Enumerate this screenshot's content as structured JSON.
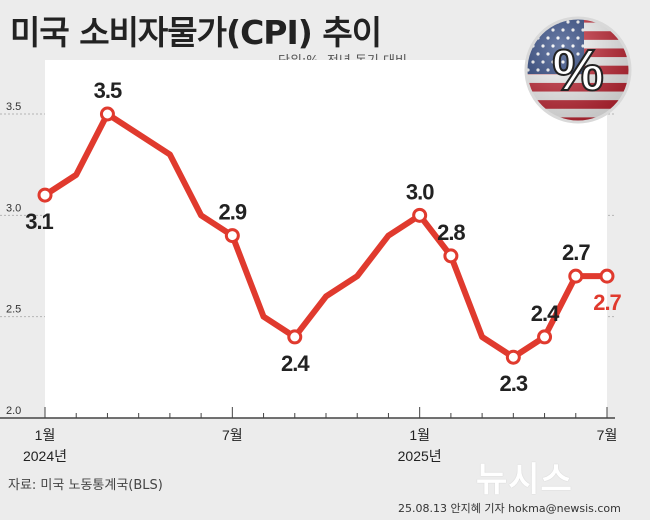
{
  "header": {
    "title": "미국 소비자물가(CPI) 추이",
    "unit_note": "단위:%, 전년 동기 대비"
  },
  "badge": {
    "symbol": "%",
    "icon": "us-flag-icon"
  },
  "footer": {
    "source": "자료: 미국 노동통계국(BLS)",
    "credit": "25.08.13 안지혜 기자 hokma@newsis.com",
    "watermark": "뉴시스"
  },
  "colors": {
    "line": "#e03a2e",
    "last_label": "#e03a2e",
    "label": "#222222",
    "grid": "#b5b5b5",
    "background": "#ececec",
    "plot_area": "#ffffff"
  },
  "chart_data": {
    "type": "line",
    "title": "미국 소비자물가(CPI) 추이",
    "xlabel": "",
    "ylabel": "",
    "x": [
      "2024-01",
      "2024-02",
      "2024-03",
      "2024-04",
      "2024-05",
      "2024-06",
      "2024-07",
      "2024-08",
      "2024-09",
      "2024-10",
      "2024-11",
      "2024-12",
      "2025-01",
      "2025-02",
      "2025-03",
      "2025-04",
      "2025-05",
      "2025-06",
      "2025-07"
    ],
    "series": [
      {
        "values": [
          3.1,
          3.2,
          3.5,
          3.4,
          3.3,
          3.0,
          2.9,
          2.5,
          2.4,
          2.6,
          2.7,
          2.9,
          3.0,
          2.8,
          2.4,
          2.3,
          2.4,
          2.7,
          2.7
        ]
      }
    ],
    "labeled_points": [
      {
        "x": "2024-01",
        "label": "3.1"
      },
      {
        "x": "2024-03",
        "label": "3.5"
      },
      {
        "x": "2024-07",
        "label": "2.9"
      },
      {
        "x": "2024-09",
        "label": "2.4"
      },
      {
        "x": "2025-01",
        "label": "3.0"
      },
      {
        "x": "2025-02",
        "label": "2.8"
      },
      {
        "x": "2025-04",
        "label": "2.3"
      },
      {
        "x": "2025-05",
        "label": "2.4"
      },
      {
        "x": "2025-06",
        "label": "2.7"
      },
      {
        "x": "2025-07",
        "label": "2.7"
      }
    ],
    "x_ticks": [
      {
        "x": "2024-01",
        "label": "1월",
        "year": "2024년"
      },
      {
        "x": "2024-07",
        "label": "7월",
        "year": ""
      },
      {
        "x": "2025-01",
        "label": "1월",
        "year": "2025년"
      },
      {
        "x": "2025-07",
        "label": "7월",
        "year": ""
      }
    ],
    "y_ticks": [
      "3.5",
      "3.0",
      "2.5",
      "2.0"
    ],
    "ylim": [
      2.0,
      3.5
    ],
    "grid": true,
    "legend": "none"
  }
}
